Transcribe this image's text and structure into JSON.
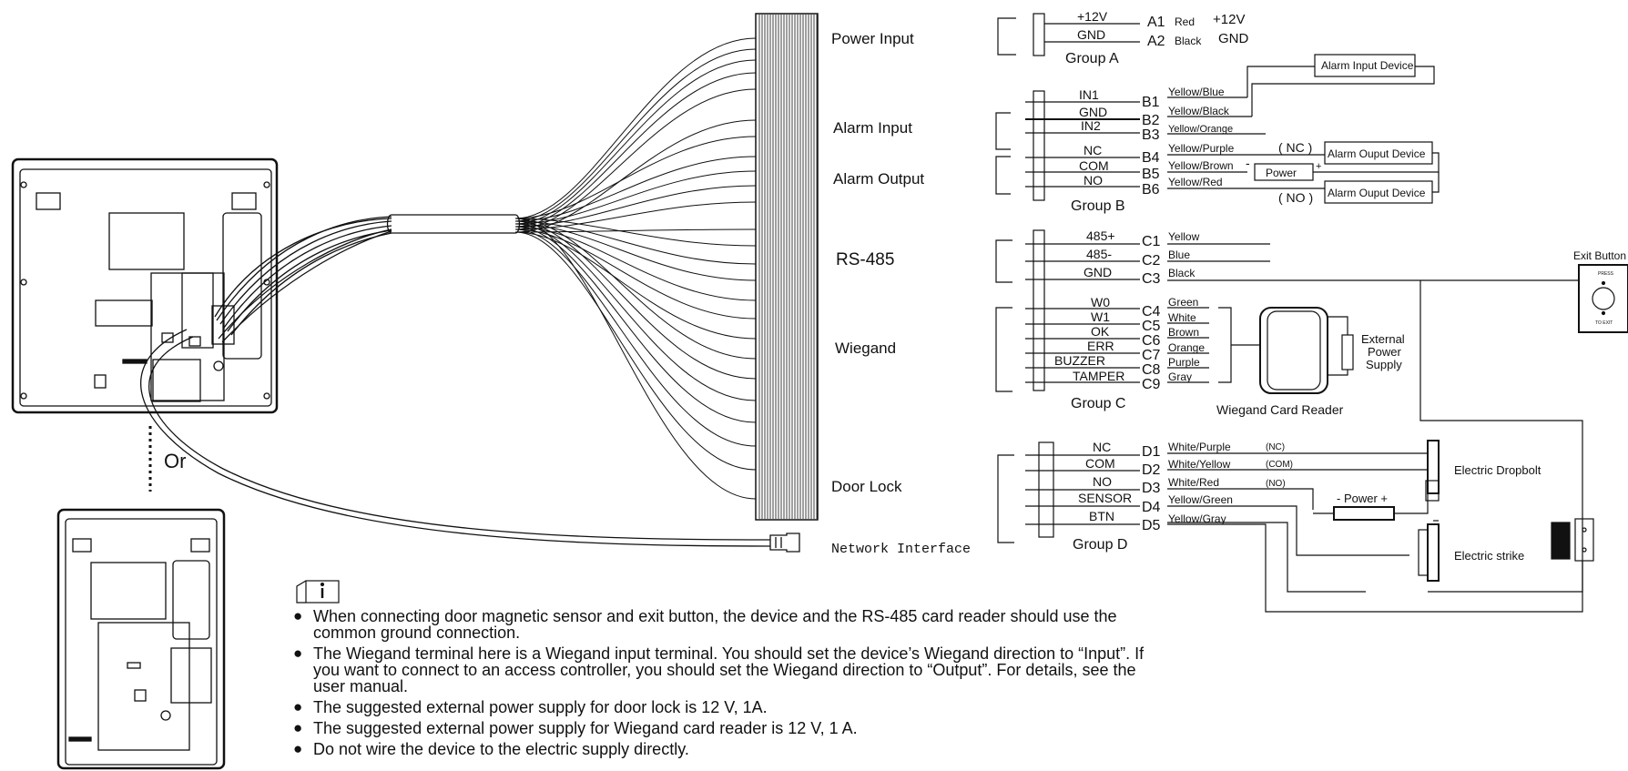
{
  "harness": {
    "power_input": "Power Input",
    "alarm_input": "Alarm Input",
    "alarm_output": "Alarm Output",
    "rs485": "RS-485",
    "wiegand": "Wiegand",
    "door_lock": "Door Lock",
    "network_interface": "Network Interface"
  },
  "or_label": "Or",
  "group_a": {
    "name": "Group A",
    "wires": [
      {
        "signal": "+12V",
        "pin": "A1",
        "color": "Red",
        "extra": "+12V"
      },
      {
        "signal": "GND",
        "pin": "A2",
        "color": "Black",
        "extra": "GND"
      }
    ]
  },
  "group_b": {
    "name": "Group B",
    "wires": [
      {
        "signal": "IN1",
        "pin": "B1",
        "color": "Yellow/Blue"
      },
      {
        "signal": "GND",
        "pin": "B2",
        "color": "Yellow/Black"
      },
      {
        "signal": "IN2",
        "pin": "B3",
        "color": "Yellow/Orange"
      },
      {
        "signal": "NC",
        "pin": "B4",
        "color": "Yellow/Purple"
      },
      {
        "signal": "COM",
        "pin": "B5",
        "color": "Yellow/Brown"
      },
      {
        "signal": "NO",
        "pin": "B6",
        "color": "Yellow/Red"
      }
    ],
    "alarm_input_device": "Alarm Input Device",
    "alarm_output_device_nc": "Alarm Ouput Device",
    "alarm_output_device_no": "Alarm Ouput Device",
    "nc_tag": "( NC )",
    "no_tag": "( NO )",
    "power": "Power",
    "minus": "-",
    "plus": "+"
  },
  "group_c": {
    "name": "Group C",
    "wires": [
      {
        "signal": "485+",
        "pin": "C1",
        "color": "Yellow"
      },
      {
        "signal": "485-",
        "pin": "C2",
        "color": "Blue"
      },
      {
        "signal": "GND",
        "pin": "C3",
        "color": "Black"
      },
      {
        "signal": "W0",
        "pin": "C4",
        "color": "Green"
      },
      {
        "signal": "W1",
        "pin": "C5",
        "color": "White"
      },
      {
        "signal": "OK",
        "pin": "C6",
        "color": "Brown"
      },
      {
        "signal": "ERR",
        "pin": "C7",
        "color": "Orange"
      },
      {
        "signal": "BUZZER",
        "pin": "C8",
        "color": "Purple"
      },
      {
        "signal": "TAMPER",
        "pin": "C9",
        "color": "Gray"
      }
    ],
    "card_reader": "Wiegand Card Reader",
    "ext_power_1": "External",
    "ext_power_2": "Power",
    "ext_power_3": "Supply"
  },
  "exit_button": {
    "label": "Exit Button",
    "press": "PRESS",
    "to_exit": "TO EXIT"
  },
  "group_d": {
    "name": "Group D",
    "wires": [
      {
        "signal": "NC",
        "pin": "D1",
        "color": "White/Purple",
        "tag": "(NC)"
      },
      {
        "signal": "COM",
        "pin": "D2",
        "color": "White/Yellow",
        "tag": "(COM)"
      },
      {
        "signal": "NO",
        "pin": "D3",
        "color": "White/Red",
        "tag": "(NO)"
      },
      {
        "signal": "SENSOR",
        "pin": "D4",
        "color": "Yellow/Green",
        "tag": ""
      },
      {
        "signal": "BTN",
        "pin": "D5",
        "color": "Yellow/Gray",
        "tag": ""
      }
    ],
    "electric_dropbolt": "Electric Dropbolt",
    "electric_strike": "Electric strike",
    "power": "- Power  +"
  },
  "notes": [
    "When connecting door magnetic sensor and exit button, the device and the RS-485 card reader should use the common ground connection.",
    "The Wiegand terminal here is a Wiegand input terminal. You should set the device’s Wiegand direction to “Input”. If you want to connect to an access controller, you should set the Wiegand direction to “Output”. For details, see the user manual.",
    "The suggested external power supply for door lock is 12 V, 1A.",
    "The suggested external power supply for Wiegand card reader is 12 V, 1 A.",
    "Do not wire the device to the electric supply directly."
  ]
}
